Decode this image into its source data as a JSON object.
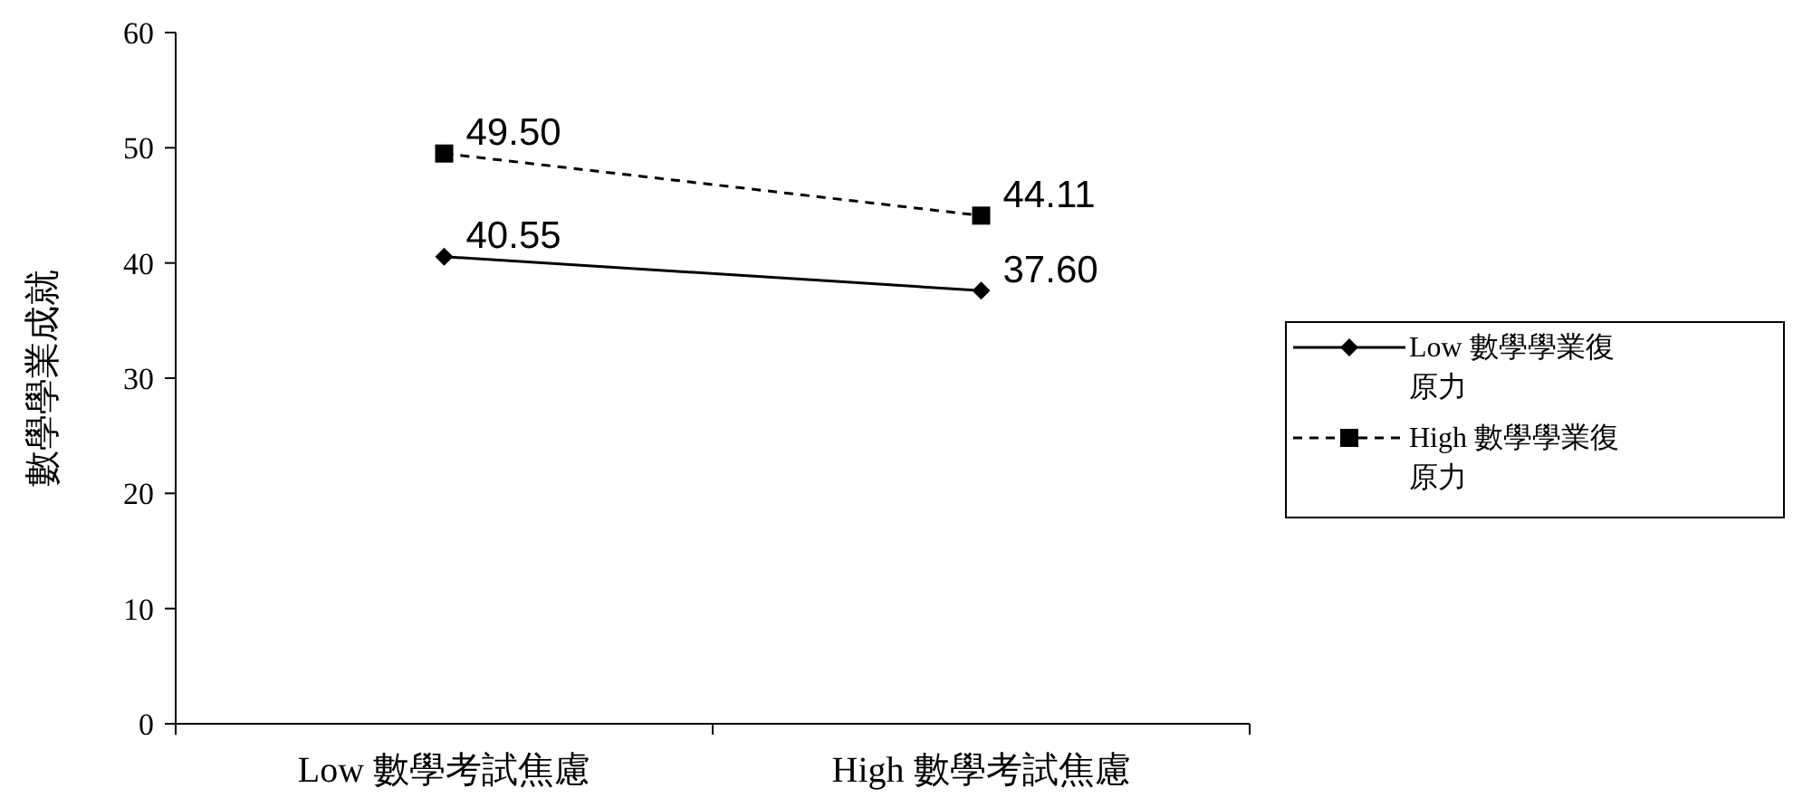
{
  "chart_data": {
    "type": "line",
    "ylabel": "數學學業成就",
    "categories": [
      "Low 數學考試焦慮",
      "High 數學考試焦慮"
    ],
    "series": [
      {
        "name": "Low 數學學業復原力",
        "color": "#000000",
        "values": [
          40.55,
          37.6
        ],
        "marker": "diamond",
        "line_style": "solid",
        "value_labels": [
          "40.55",
          "37.60"
        ]
      },
      {
        "name": "High 數學學業復原力",
        "color": "#000000",
        "values": [
          49.5,
          44.11
        ],
        "marker": "square",
        "line_style": "dashed",
        "value_labels": [
          "49.50",
          "44.11"
        ]
      }
    ],
    "ylim": [
      0,
      60
    ],
    "yticks": [
      0,
      10,
      20,
      30,
      40,
      50,
      60
    ],
    "grid": false,
    "legend": "right"
  }
}
